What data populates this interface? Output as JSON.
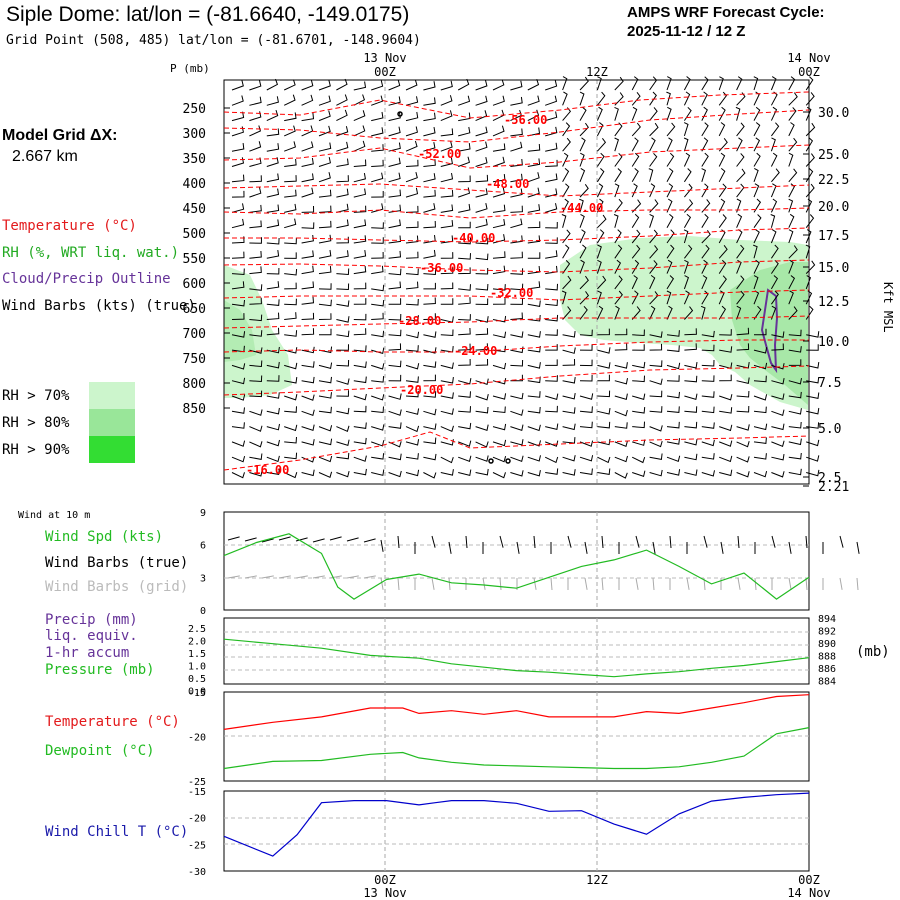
{
  "header": {
    "station_title": "Siple Dome:  lat/lon = (-81.6640, -149.0175)",
    "grid_point": "Grid Point (508, 485) lat/lon = (-81.6701, -148.9604)",
    "cycle_label": "AMPS WRF Forecast Cycle:",
    "cycle_value": "2025-11-12 / 12  Z"
  },
  "sidebar": {
    "model_grid_label": "Model Grid ΔX:",
    "model_grid_value": "2.667 km",
    "legend_temperature": "Temperature (°C)",
    "legend_rh": "RH (%, WRT liq. wat.)",
    "legend_cloud": "Cloud/Precip Outline",
    "legend_wind": "Wind Barbs (kts) (true)",
    "rh_70": "RH > 70%",
    "rh_80": "RH > 80%",
    "rh_90": "RH > 90%"
  },
  "colors": {
    "temperature": "#ff0000",
    "rh": "#22bb22",
    "cloud": "#663399",
    "wind_chill": "#0000cc",
    "rh70": "#ccf5cc",
    "rh80": "#99e699",
    "rh90": "#33dd33",
    "grid": "#aaaaaa"
  },
  "time_axis": {
    "top_date_left": "13 Nov",
    "top_date_right": "14 Nov",
    "tick_00z": "00Z",
    "tick_12z": "12Z",
    "tick_00z_end": "00Z",
    "bottom_date_left": "13 Nov",
    "bottom_date_right": "14 Nov"
  },
  "chart_data": [
    {
      "type": "contour",
      "name": "upper-air time-height cross section",
      "ylabel": "P (mb)",
      "y2label": "Kft MSL",
      "pressure_ticks": [
        250,
        300,
        350,
        400,
        450,
        500,
        550,
        600,
        650,
        700,
        750,
        800,
        850
      ],
      "height_ticks": [
        "30.0",
        "25.0",
        "22.5",
        "20.0",
        "17.5",
        "15.0",
        "12.5",
        "10.0",
        "7.5",
        "5.0",
        "2.5",
        "2.21"
      ],
      "temperature_contour_labels": [
        "-56.00",
        "-52.00",
        "-48.00",
        "-44.00",
        "-40.00",
        "-36.00",
        "-32.00",
        "-28.00",
        "-24.00",
        "-20.00",
        "-16.00"
      ],
      "time_range_hours": [
        -12,
        24
      ]
    },
    {
      "type": "line",
      "name": "10 m wind",
      "panel_title": "Wind at 10 m",
      "labels": {
        "speed": "Wind Spd (kts)",
        "barbs_true": "Wind Barbs (true)",
        "barbs_grid": "Wind Barbs (grid)"
      },
      "y_ticks": [
        0,
        3,
        6,
        9
      ],
      "ylim": [
        0,
        9
      ],
      "x_hours": [
        -12,
        -10,
        -8,
        -6,
        -5,
        -4,
        -2,
        0,
        2,
        4,
        6,
        8,
        10,
        12,
        14,
        16,
        18,
        20,
        22,
        24
      ],
      "values": [
        5,
        6.2,
        7,
        5.2,
        2.1,
        1,
        2.8,
        3.3,
        2.5,
        2.3,
        2,
        3,
        4,
        4.6,
        5.5,
        4,
        2.4,
        3.4,
        1,
        3
      ]
    },
    {
      "type": "line",
      "name": "precip and pressure",
      "labels": {
        "precip": "Precip (mm)",
        "precip2": "liq. equiv.",
        "precip3": "1-hr accum",
        "pressure": "Pressure (mb)",
        "right_unit": "(mb)"
      },
      "precip_ticks": [
        "2.5",
        "2.0",
        "1.5",
        "1.0",
        "0.5",
        "0.0"
      ],
      "pressure_ticks": [
        "894",
        "892",
        "890",
        "888",
        "886",
        "884"
      ],
      "ylim": [
        884,
        894
      ],
      "x_hours": [
        -12,
        -9,
        -6,
        -3,
        0,
        2,
        4,
        6,
        8,
        10,
        12,
        14,
        16,
        18,
        20,
        22,
        24
      ],
      "values": [
        892,
        891.2,
        890.4,
        889.1,
        888.6,
        887.6,
        887,
        886.4,
        886.1,
        885.7,
        885.3,
        885.8,
        886.2,
        886.8,
        887.3,
        888,
        888.7
      ]
    },
    {
      "type": "line",
      "name": "surface temperature and dewpoint",
      "labels": {
        "temperature": "Temperature (°C)",
        "dewpoint": "Dewpoint (°C)"
      },
      "y_ticks": [
        "-15",
        "-20",
        "-25"
      ],
      "ylim": [
        -25,
        -15
      ],
      "x_hours": [
        -12,
        -9,
        -6,
        -3,
        -1,
        0,
        2,
        4,
        6,
        8,
        10,
        12,
        14,
        16,
        18,
        20,
        22,
        24
      ],
      "series": [
        {
          "name": "Temperature",
          "values": [
            -19.2,
            -18.4,
            -17.8,
            -16.8,
            -16.8,
            -17.4,
            -17.1,
            -17.5,
            -17.1,
            -17.8,
            -17.8,
            -17.8,
            -17.2,
            -17.4,
            -16.8,
            -16.2,
            -15.5,
            -15.3
          ]
        },
        {
          "name": "Dewpoint",
          "values": [
            -23.6,
            -22.8,
            -22.7,
            -22,
            -21.8,
            -22.4,
            -22.9,
            -23.2,
            -23.3,
            -23.4,
            -23.5,
            -23.6,
            -23.6,
            -23.4,
            -22.9,
            -22.2,
            -19.7,
            -19
          ]
        }
      ]
    },
    {
      "type": "line",
      "name": "wind chill",
      "labels": {
        "wind_chill": "Wind Chill T (°C)"
      },
      "y_ticks": [
        "-15",
        "-20",
        "-25",
        "-30"
      ],
      "ylim": [
        -30,
        -15
      ],
      "x_hours": [
        -12,
        -9,
        -7.5,
        -6,
        -4,
        -2,
        0,
        1,
        2,
        4,
        6,
        8,
        10,
        12,
        14,
        16,
        18,
        20,
        22,
        24
      ],
      "values": [
        -23.5,
        -27.2,
        -23.2,
        -17.2,
        -16.8,
        -16.8,
        -17.6,
        -17.2,
        -16.8,
        -16.8,
        -17.3,
        -18.8,
        -18.7,
        -21.2,
        -23.1,
        -19.3,
        -16.9,
        -16.2,
        -15.7,
        -15.4
      ]
    }
  ]
}
